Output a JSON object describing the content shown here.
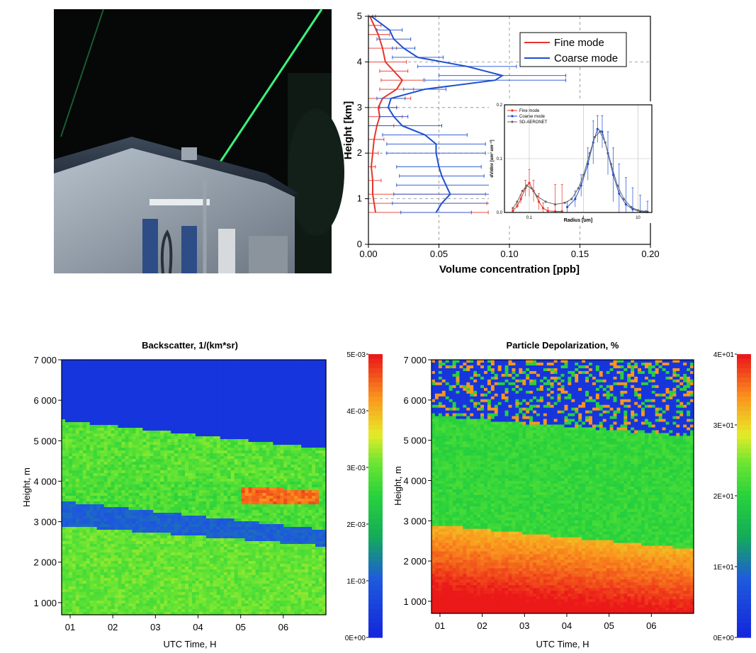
{
  "photo": {
    "description_icon": "lidar-night-photo"
  },
  "profile": {
    "type": "line",
    "xlabel": "Volume concentration [ppb]",
    "ylabel": "Height [km]",
    "xlim": [
      0,
      0.2
    ],
    "ylim": [
      0,
      5
    ],
    "xticks": [
      "0.00",
      "0.05",
      "0.10",
      "0.15",
      "0.20"
    ],
    "yticks": [
      "0",
      "1",
      "2",
      "3",
      "4",
      "5"
    ],
    "colors": {
      "fine": "#e8332a",
      "coarse": "#1f4fcf"
    },
    "series": [
      {
        "name": "Fine mode",
        "points": [
          [
            0.005,
            0.7
          ],
          [
            0.004,
            0.9
          ],
          [
            0.003,
            1.1
          ],
          [
            0.003,
            1.4
          ],
          [
            0.002,
            1.7
          ],
          [
            0.003,
            2.0
          ],
          [
            0.004,
            2.3
          ],
          [
            0.006,
            2.6
          ],
          [
            0.008,
            2.8
          ],
          [
            0.007,
            3.0
          ],
          [
            0.01,
            3.2
          ],
          [
            0.02,
            3.4
          ],
          [
            0.024,
            3.6
          ],
          [
            0.018,
            3.8
          ],
          [
            0.012,
            4.0
          ],
          [
            0.01,
            4.3
          ],
          [
            0.007,
            4.6
          ],
          [
            0.004,
            4.8
          ],
          [
            0.001,
            5.0
          ]
        ],
        "err": [
          0.08,
          0.08,
          0.08,
          0.006,
          0.003,
          0.004,
          0.007,
          0.012,
          0.016,
          0.013,
          0.02,
          0.012,
          0.015,
          0.01,
          0.015,
          0.01,
          0.008,
          0.005,
          0.002
        ]
      },
      {
        "name": "Coarse mode",
        "points": [
          [
            0.048,
            0.7
          ],
          [
            0.052,
            0.9
          ],
          [
            0.058,
            1.1
          ],
          [
            0.055,
            1.3
          ],
          [
            0.052,
            1.5
          ],
          [
            0.05,
            1.7
          ],
          [
            0.048,
            2.0
          ],
          [
            0.048,
            2.2
          ],
          [
            0.04,
            2.4
          ],
          [
            0.024,
            2.6
          ],
          [
            0.018,
            2.8
          ],
          [
            0.014,
            3.0
          ],
          [
            0.016,
            3.2
          ],
          [
            0.04,
            3.4
          ],
          [
            0.09,
            3.6
          ],
          [
            0.095,
            3.7
          ],
          [
            0.07,
            3.9
          ],
          [
            0.035,
            4.1
          ],
          [
            0.025,
            4.3
          ],
          [
            0.018,
            4.5
          ],
          [
            0.015,
            4.7
          ],
          [
            0.002,
            5.0
          ]
        ],
        "err": [
          0.025,
          0.035,
          0.04,
          0.035,
          0.03,
          0.03,
          0.035,
          0.035,
          0.03,
          0.028,
          0.01,
          0.006,
          0.01,
          0.015,
          0.05,
          0.045,
          0.035,
          0.018,
          0.008,
          0.012,
          0.009,
          0.003
        ]
      }
    ],
    "legend": [
      "Fine mode",
      "Coarse mode"
    ]
  },
  "inset": {
    "type": "line",
    "xlabel": "Radius [um]",
    "ylabel": "dV/dlnr [um³ um⁻²]",
    "ylim": [
      0,
      0.2
    ],
    "yticks": [
      "0.0",
      "0.1",
      "0.2"
    ],
    "xticks": [
      "0.1",
      "1",
      "10"
    ],
    "colors": {
      "fine": "#e8332a",
      "coarse": "#1f4fcf",
      "aeronet": "#666666"
    },
    "series": [
      {
        "name": "Fine mode",
        "points": [
          [
            0.05,
            0.003
          ],
          [
            0.06,
            0.012
          ],
          [
            0.07,
            0.025
          ],
          [
            0.085,
            0.045
          ],
          [
            0.1,
            0.055
          ],
          [
            0.12,
            0.04
          ],
          [
            0.15,
            0.02
          ],
          [
            0.18,
            0.008
          ],
          [
            0.22,
            0.003
          ],
          [
            0.3,
            0.002
          ],
          [
            0.4,
            0.002
          ]
        ],
        "err": [
          0.002,
          0.004,
          0.008,
          0.015,
          0.025,
          0.02,
          0.015,
          0.01,
          0.006,
          0.05,
          0.05
        ]
      },
      {
        "name": "Coarse mode",
        "points": [
          [
            0.5,
            0.01
          ],
          [
            0.7,
            0.025
          ],
          [
            0.9,
            0.05
          ],
          [
            1.2,
            0.09
          ],
          [
            1.5,
            0.13
          ],
          [
            1.8,
            0.155
          ],
          [
            2.2,
            0.15
          ],
          [
            2.8,
            0.11
          ],
          [
            3.5,
            0.07
          ],
          [
            4.5,
            0.035
          ],
          [
            6,
            0.015
          ],
          [
            8,
            0.006
          ],
          [
            11,
            0.002
          ],
          [
            15,
            0.001
          ]
        ],
        "err": [
          0.01,
          0.015,
          0.02,
          0.03,
          0.04,
          0.025,
          0.03,
          0.04,
          0.05,
          0.055,
          0.05,
          0.04,
          0.03,
          0.02
        ]
      },
      {
        "name": "SD-AERONET",
        "points": [
          [
            0.05,
            0.008
          ],
          [
            0.06,
            0.02
          ],
          [
            0.075,
            0.04
          ],
          [
            0.09,
            0.05
          ],
          [
            0.11,
            0.045
          ],
          [
            0.14,
            0.03
          ],
          [
            0.2,
            0.02
          ],
          [
            0.3,
            0.015
          ],
          [
            0.45,
            0.018
          ],
          [
            0.6,
            0.025
          ],
          [
            0.8,
            0.045
          ],
          [
            1.0,
            0.07
          ],
          [
            1.3,
            0.11
          ],
          [
            1.6,
            0.14
          ],
          [
            2.0,
            0.15
          ],
          [
            2.5,
            0.13
          ],
          [
            3.2,
            0.09
          ],
          [
            4.2,
            0.05
          ],
          [
            5.5,
            0.025
          ],
          [
            7.5,
            0.01
          ],
          [
            10,
            0.004
          ],
          [
            14,
            0.002
          ]
        ]
      }
    ],
    "legend": [
      "Fine mode",
      "Coarse mode",
      "SD-AERONET"
    ]
  },
  "backscatter": {
    "type": "heatmap",
    "title": "Backscatter, 1/(km*sr)",
    "xlabel": "UTC Time, H",
    "ylabel": "Height, m",
    "xticks": [
      "01",
      "02",
      "03",
      "04",
      "05",
      "06"
    ],
    "yticks": [
      "7 000",
      "6 000",
      "5 000",
      "4 000",
      "3 000",
      "2 000",
      "1 000"
    ],
    "colorbar_ticks": [
      "5E-03",
      "4E-03",
      "3E-03",
      "2E-03",
      "1E-03",
      "0E+00"
    ]
  },
  "depolarization": {
    "type": "heatmap",
    "title": "Particle Depolarization, %",
    "xlabel": "UTC Time, H",
    "ylabel": "Height, m",
    "xticks": [
      "01",
      "02",
      "03",
      "04",
      "05",
      "06"
    ],
    "yticks": [
      "7 000",
      "6 000",
      "5 000",
      "4 000",
      "3 000",
      "2 000",
      "1 000"
    ],
    "colorbar_ticks": [
      "4E+01",
      "3E+01",
      "2E+01",
      "1E+01",
      "0E+00"
    ]
  }
}
